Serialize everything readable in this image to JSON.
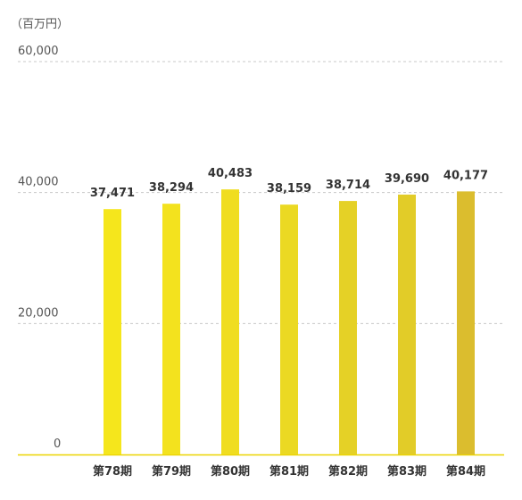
{
  "chart_data": {
    "type": "bar",
    "unit_label": "（百万円）",
    "categories": [
      "第78期",
      "第79期",
      "第80期",
      "第81期",
      "第82期",
      "第83期",
      "第84期"
    ],
    "values": [
      37471,
      38294,
      40483,
      38159,
      38714,
      39690,
      40177
    ],
    "value_labels": [
      "37,471",
      "38,294",
      "40,483",
      "38,159",
      "38,714",
      "39,690",
      "40,177"
    ],
    "yticks": [
      0,
      20000,
      40000,
      60000
    ],
    "ytick_labels": [
      "0",
      "20,000",
      "40,000",
      "60,000"
    ],
    "ylim": [
      0,
      60000
    ],
    "grid": true,
    "bar_colors": [
      "#f5e61c",
      "#f3e21e",
      "#f0dd20",
      "#ebd923",
      "#e5d126",
      "#e2cc28",
      "#dbbd2e"
    ],
    "baseline_color": "#ecd400",
    "grid_color": "#c8c8c8"
  }
}
